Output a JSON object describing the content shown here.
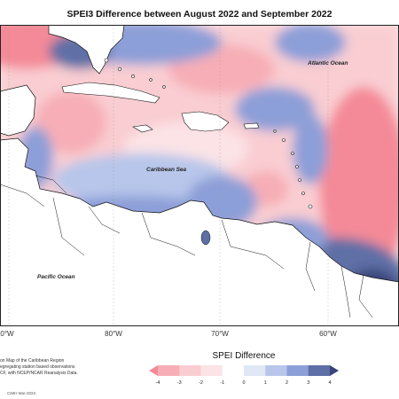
{
  "title": "SPEI3 Difference between August 2022 and September 2022",
  "map_labels": {
    "atlantic": "Atlantic Ocean",
    "caribbean": "Caribbean Sea",
    "pacific": "Pacific Ocean"
  },
  "longitude_ticks": [
    "0°W",
    "80°W",
    "70°W",
    "60°W"
  ],
  "notes": [
    "on Map of the Caribbean Region",
    "egregating station based observations",
    "CF, with NCEP/NCAR Reanalysis Data."
  ],
  "credit": "CIMH Mar-2023",
  "legend": {
    "title": "SPEI Difference",
    "ticks": [
      "-4",
      "-3",
      "-2",
      "-1",
      "0",
      "1",
      "2",
      "3",
      "4"
    ],
    "colors": [
      "#f48a97",
      "#f7aeb6",
      "#f9cdd2",
      "#fbe3e6",
      "#ffffff",
      "#dfe8f4",
      "#b7c6ea",
      "#8d9fd8",
      "#5e6fa6",
      "#38447a"
    ]
  },
  "colors": {
    "land": "#ffffff",
    "coast": "#111111",
    "dry": "#f7b7bf",
    "wet": "#7a8fd3",
    "very_wet": "#3f4d85"
  }
}
